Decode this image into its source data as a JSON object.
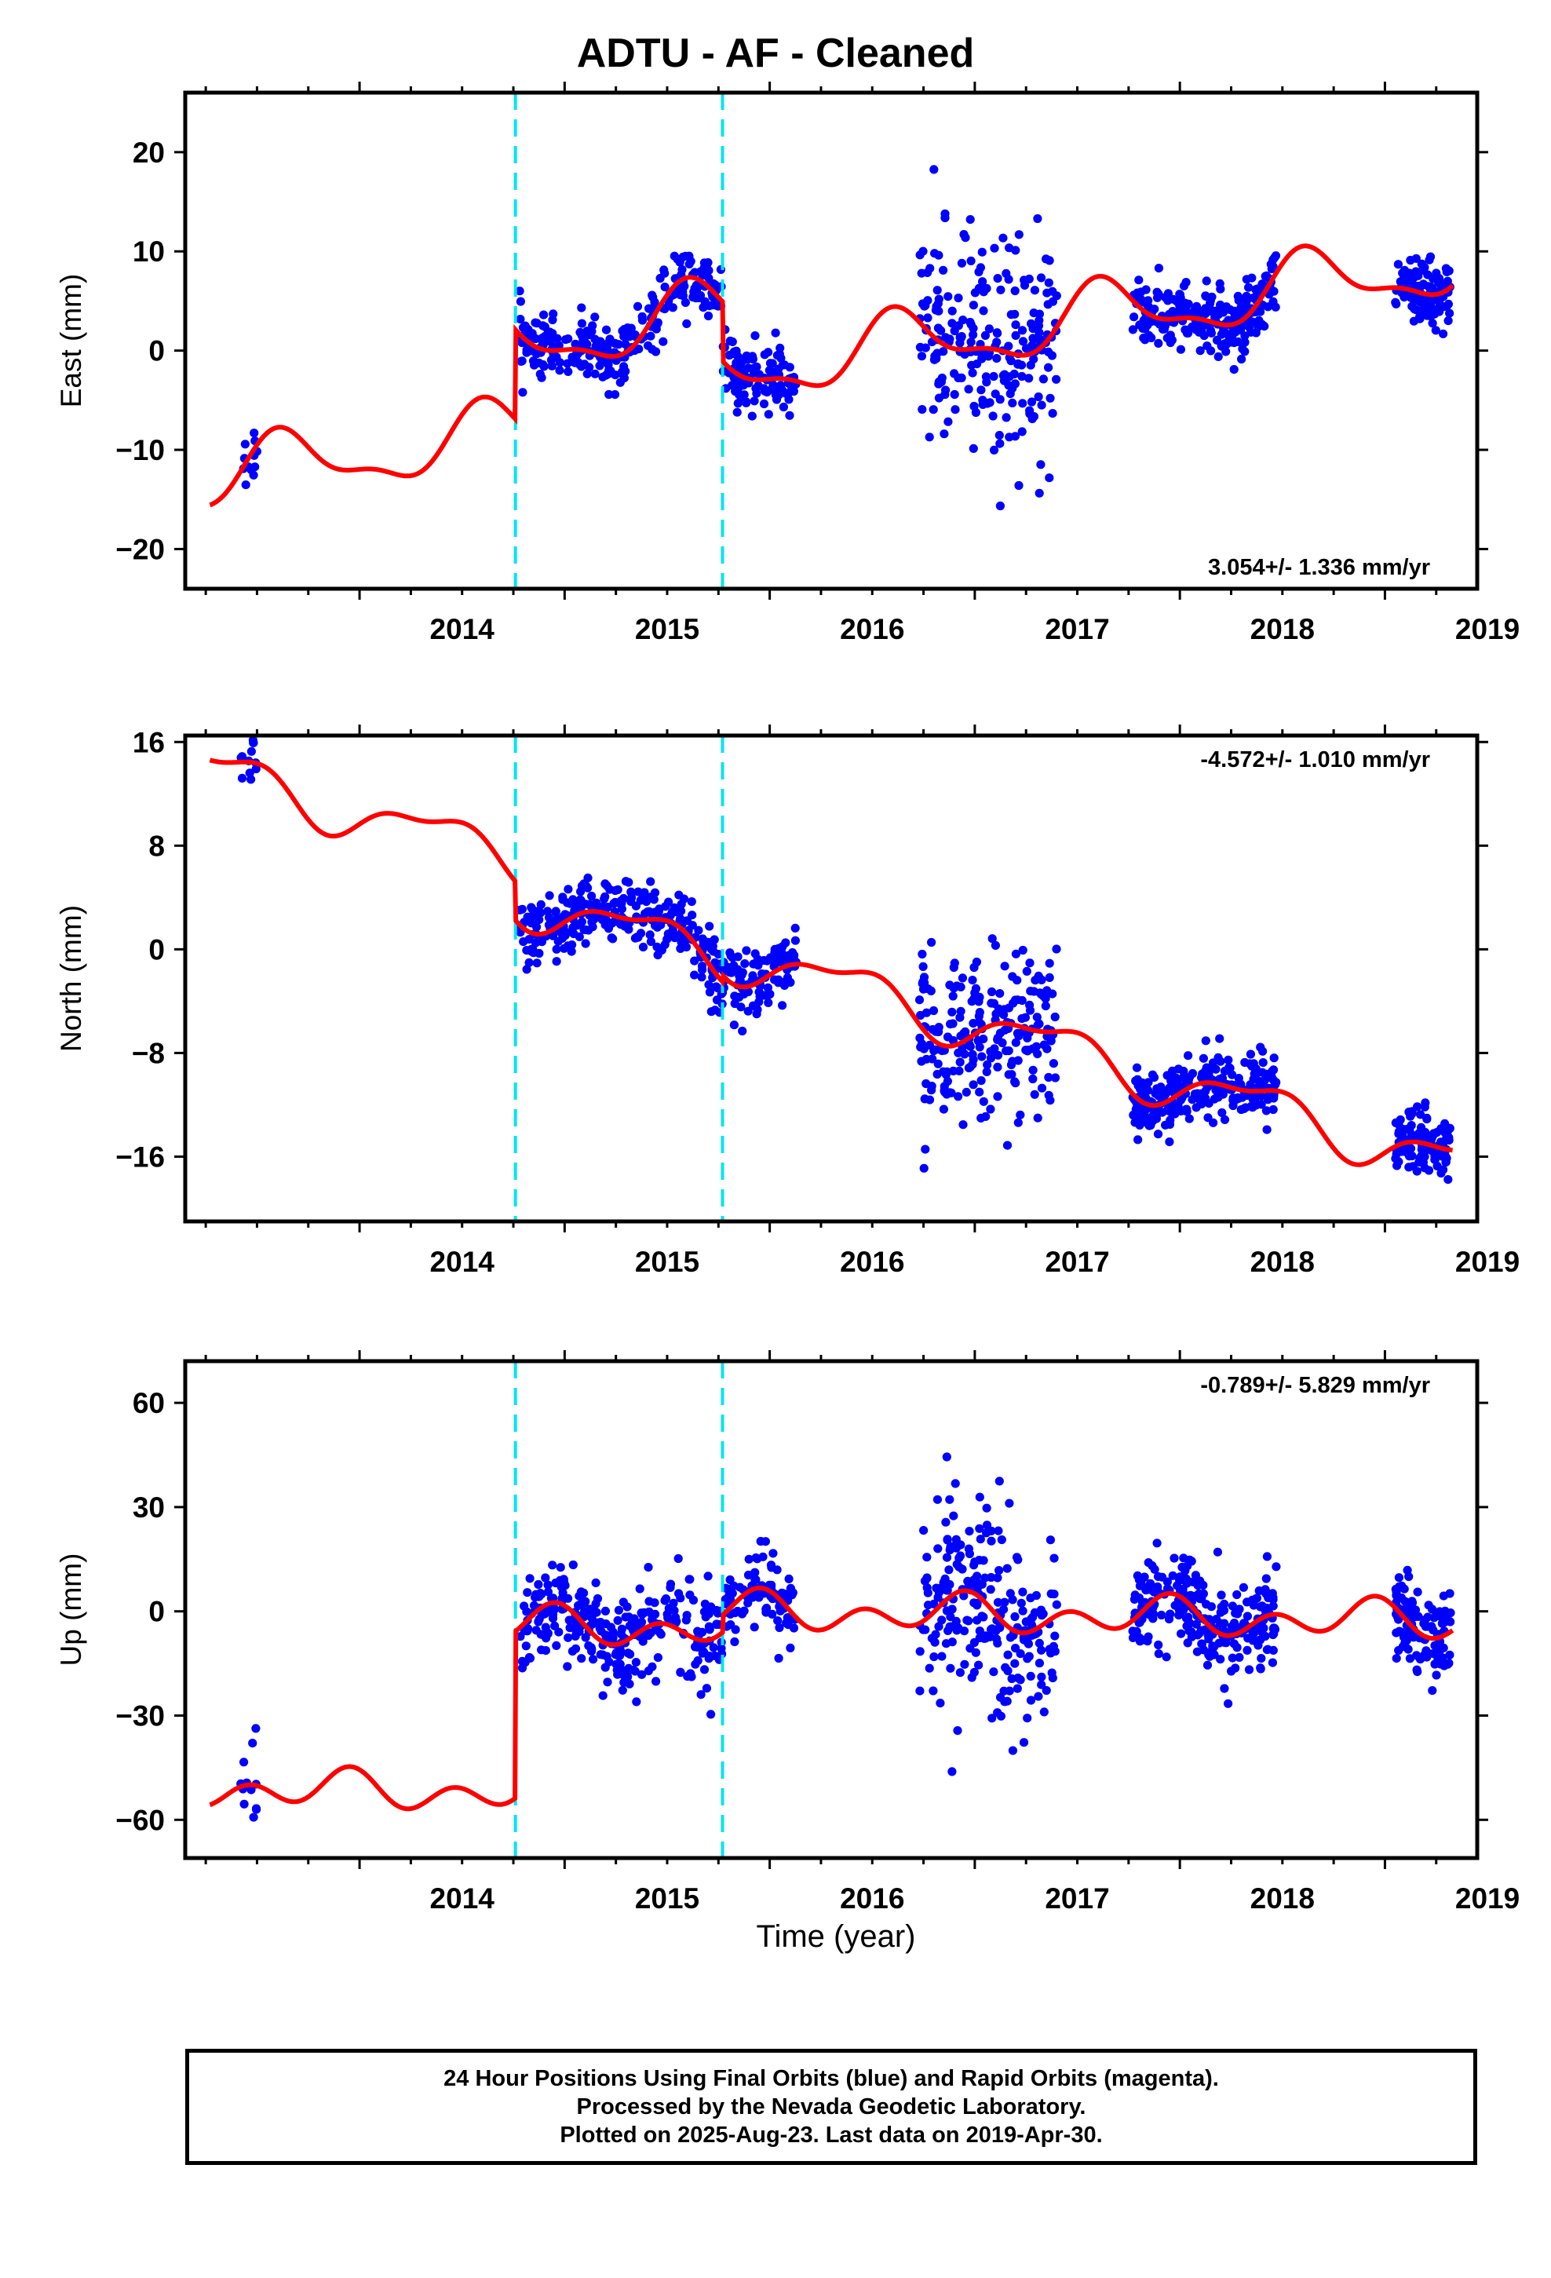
{
  "title": "ADTU  - AF - Cleaned",
  "x_axis_label": "Time (year)",
  "footer": {
    "line1": "24 Hour Positions Using Final Orbits (blue) and Rapid Orbits (magenta).",
    "line2": "Processed by the Nevada Geodetic Laboratory.",
    "line3": "Plotted on 2025-Aug-23. Last data on 2019-Apr-30."
  },
  "colors": {
    "final_orbits": "#0000ff",
    "rapid_orbits": "#ff00ff",
    "model_fit": "#ff0000",
    "equipment_change": "#00e5ee",
    "axes": "#000000"
  },
  "chart_data": [
    {
      "type": "scatter",
      "ylabel": "East (mm)",
      "xlim": [
        2013.15,
        2019.45
      ],
      "ylim": [
        -24,
        26
      ],
      "yticks": [
        -20,
        -10,
        0,
        10,
        20
      ],
      "ytick_labels": [
        "−20",
        "−10",
        "0",
        "10",
        "20"
      ],
      "xticks": [
        2014,
        2015,
        2016,
        2017,
        2018,
        2019
      ],
      "xtick_labels": [
        "2014",
        "2015",
        "2016",
        "2017",
        "2018",
        "2019"
      ],
      "rate_label": "3.054+/- 1.336 mm/yr",
      "rate_position": "bottom-right",
      "breaks": [
        2014.76,
        2015.77
      ],
      "offsets": [
        9.0,
        -6.0
      ],
      "annual": {
        "sin": -2.2,
        "cos": -2.0
      },
      "semiannual": {
        "sin": 1.0,
        "cos": 0.6
      },
      "model": {
        "t0": 2013.27,
        "y0": -12.8,
        "rate": 3.054
      },
      "scatter_sd": 1.6,
      "data_spans": [
        {
          "start": 2013.42,
          "end": 2013.5,
          "count": 12
        },
        {
          "start": 2014.78,
          "end": 2016.13,
          "count": 380
        },
        {
          "start": 2016.73,
          "end": 2017.4,
          "count": 230
        },
        {
          "start": 2017.77,
          "end": 2018.47,
          "count": 260
        },
        {
          "start": 2019.05,
          "end": 2019.32,
          "count": 120
        }
      ],
      "noisy_span": {
        "start": 2016.73,
        "end": 2017.45,
        "sd": 5.5
      }
    },
    {
      "type": "scatter",
      "ylabel": "North (mm)",
      "xlim": [
        2013.15,
        2019.45
      ],
      "ylim": [
        -21,
        16.5
      ],
      "yticks": [
        -16,
        -8,
        0,
        8,
        16
      ],
      "ytick_labels": [
        "−16",
        "−8",
        "0",
        "8",
        "16"
      ],
      "xticks": [
        2014,
        2015,
        2016,
        2017,
        2018,
        2019
      ],
      "xtick_labels": [
        "2014",
        "2015",
        "2016",
        "2017",
        "2018",
        "2019"
      ],
      "rate_label": "-4.572+/- 1.010 mm/yr",
      "rate_position": "top-right",
      "breaks": [
        2014.76,
        2015.77
      ],
      "offsets": [
        -3.0,
        0.5
      ],
      "annual": {
        "sin": 1.2,
        "cos": -1.2
      },
      "semiannual": {
        "sin": 0.6,
        "cos": 0.4
      },
      "model": {
        "t0": 2013.27,
        "y0": 13.8,
        "rate": -4.572
      },
      "scatter_sd": 1.3,
      "data_spans": [
        {
          "start": 2013.42,
          "end": 2013.5,
          "count": 12
        },
        {
          "start": 2014.78,
          "end": 2016.13,
          "count": 380
        },
        {
          "start": 2016.73,
          "end": 2017.4,
          "count": 230
        },
        {
          "start": 2017.77,
          "end": 2018.47,
          "count": 260
        },
        {
          "start": 2019.05,
          "end": 2019.32,
          "count": 120
        }
      ],
      "noisy_span": {
        "start": 2016.73,
        "end": 2017.45,
        "sd": 3.2
      }
    },
    {
      "type": "scatter",
      "ylabel": "Up (mm)",
      "xlim": [
        2013.15,
        2019.45
      ],
      "ylim": [
        -71,
        72
      ],
      "yticks": [
        -60,
        -30,
        0,
        30,
        60
      ],
      "ytick_labels": [
        "−60",
        "−30",
        "0",
        "30",
        "60"
      ],
      "xticks": [
        2014,
        2015,
        2016,
        2017,
        2018,
        2019
      ],
      "xtick_labels": [
        "2014",
        "2015",
        "2016",
        "2017",
        "2018",
        "2019"
      ],
      "rate_label": "-0.789+/- 5.829 mm/yr",
      "rate_position": "top-right",
      "breaks": [
        2014.76,
        2015.77
      ],
      "offsets": [
        48.0,
        5.0
      ],
      "annual": {
        "sin": -1.5,
        "cos": 2.5
      },
      "semiannual": {
        "sin": -2.0,
        "cos": 3.5
      },
      "model": {
        "t0": 2013.27,
        "y0": -51.0,
        "rate": -0.789
      },
      "scatter_sd": 6.5,
      "data_spans": [
        {
          "start": 2013.42,
          "end": 2013.5,
          "count": 12
        },
        {
          "start": 2014.78,
          "end": 2016.13,
          "count": 380
        },
        {
          "start": 2016.73,
          "end": 2017.4,
          "count": 230
        },
        {
          "start": 2017.77,
          "end": 2018.47,
          "count": 260
        },
        {
          "start": 2019.05,
          "end": 2019.32,
          "count": 120
        }
      ],
      "noisy_span": {
        "start": 2016.73,
        "end": 2017.45,
        "sd": 15
      }
    }
  ]
}
